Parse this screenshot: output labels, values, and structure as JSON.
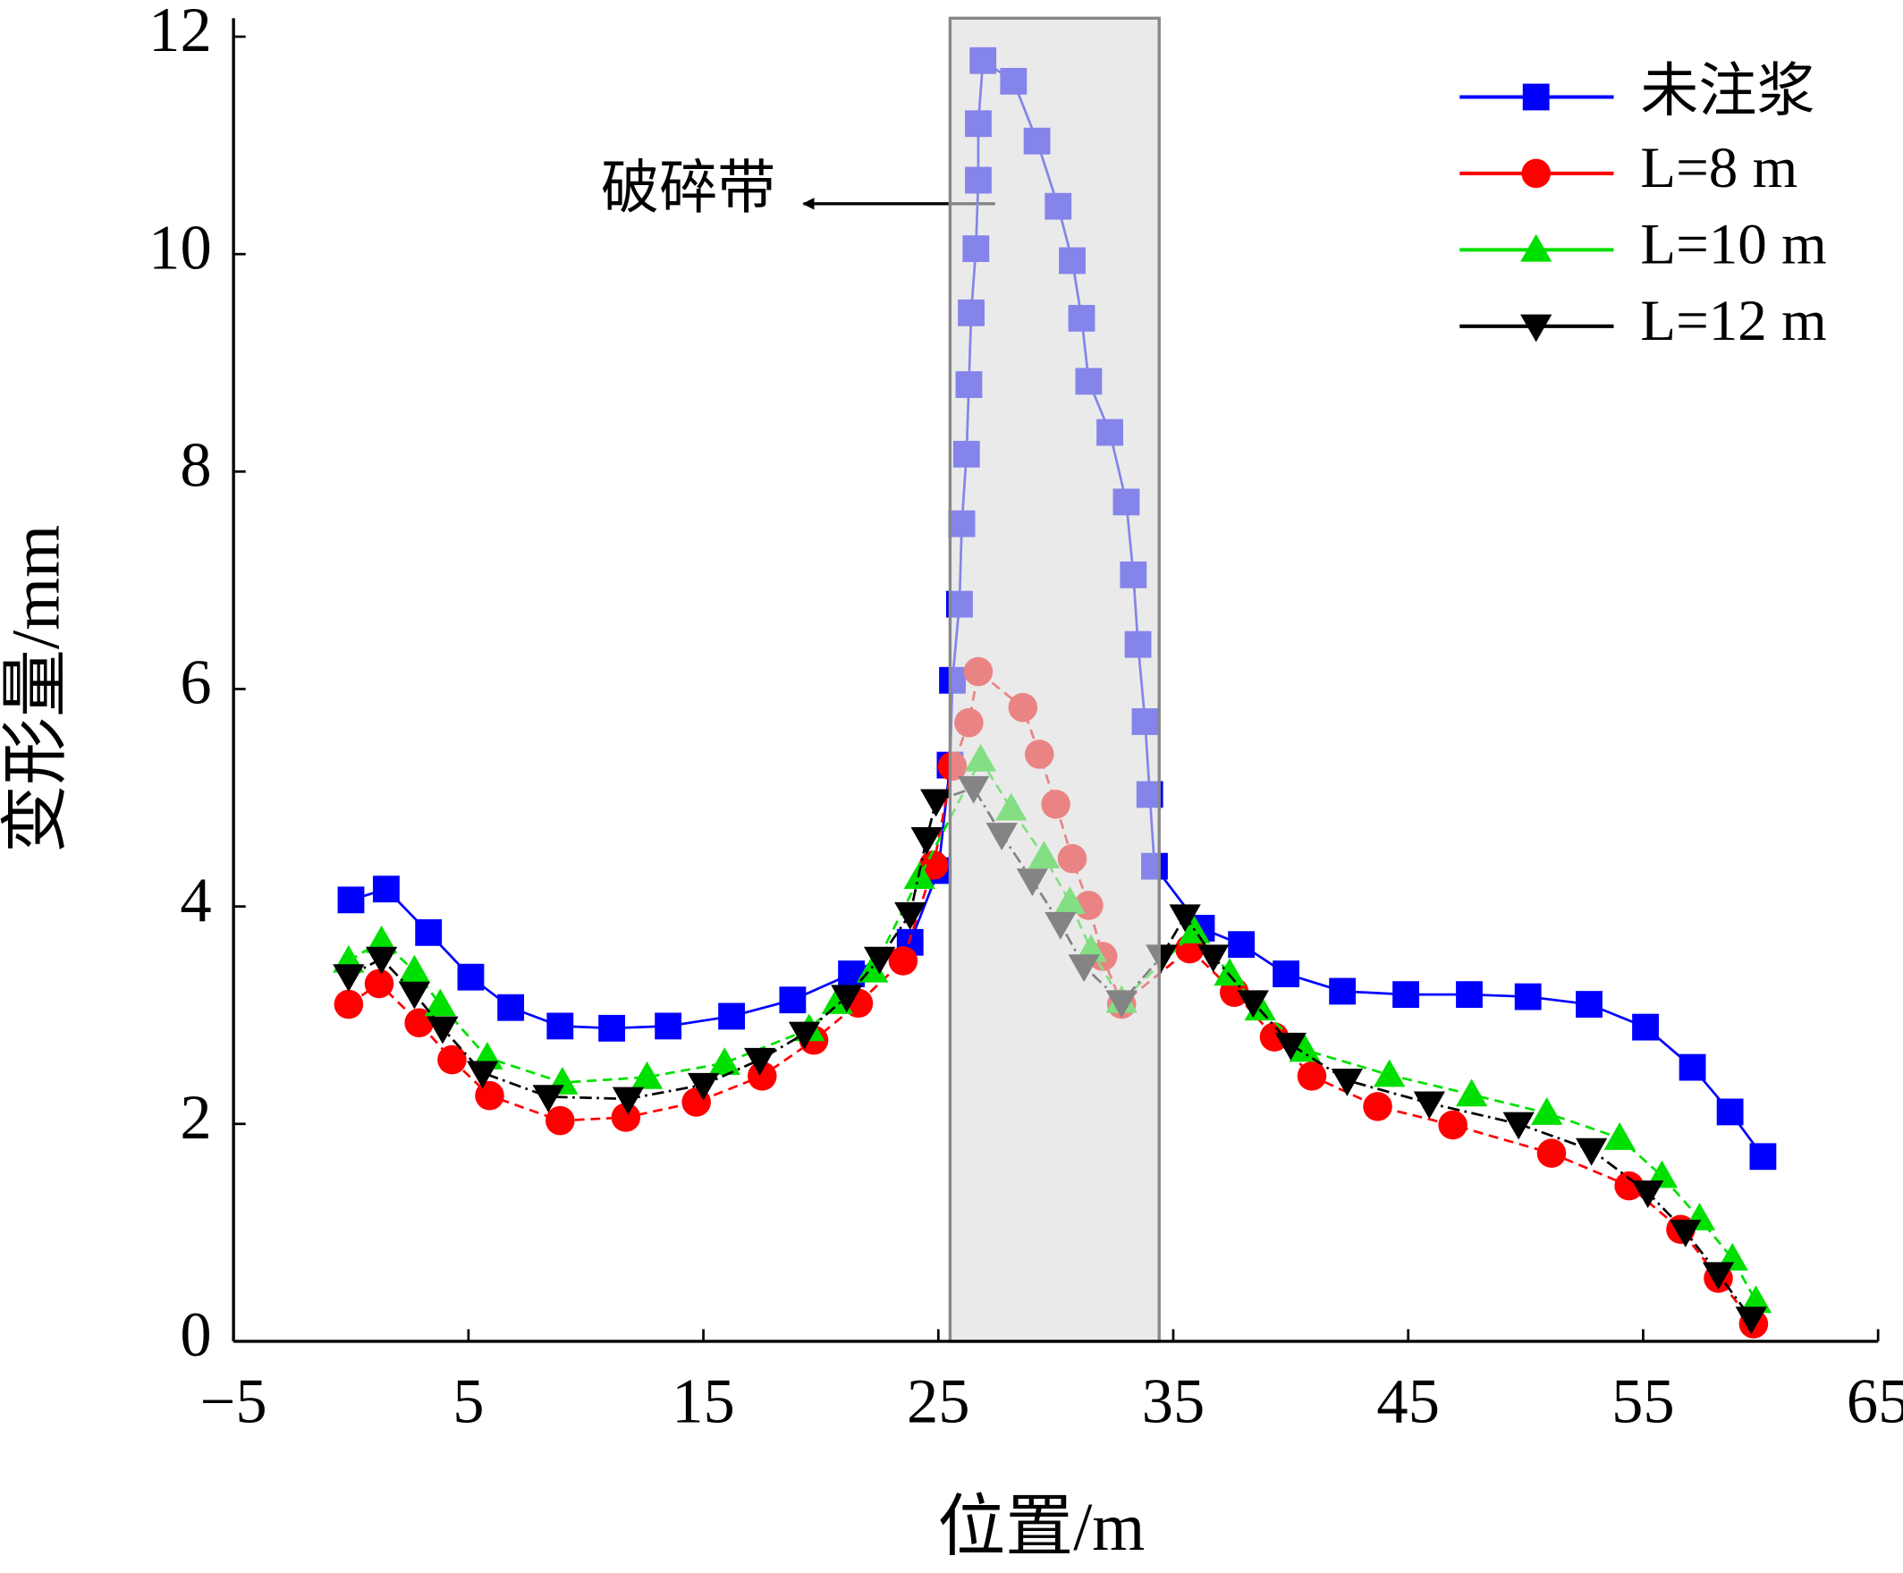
{
  "chart_data": {
    "type": "line",
    "xlabel": "位置/m",
    "ylabel": "变形量/mm",
    "xlim": [
      -5,
      65
    ],
    "ylim": [
      0,
      12.17
    ],
    "xticks": [
      {
        "value": -5,
        "label": "−5"
      },
      5,
      15,
      25,
      35,
      45,
      55,
      65
    ],
    "yticks": [
      0,
      2,
      4,
      6,
      8,
      10,
      12
    ],
    "shaded_region": {
      "x": [
        25.5,
        34.4
      ],
      "color": "#dcdcdc"
    },
    "annotation": {
      "text": "破碎带"
    },
    "legend": "upper right",
    "series": [
      {
        "name": "未注浆",
        "color": "#0000ff",
        "marker": "square",
        "linestyle": "solid",
        "x": [
          0,
          1.5,
          3.3,
          5.1,
          6.8,
          8.9,
          11.1,
          13.5,
          16.2,
          18.8,
          21.3,
          23.8,
          25.0,
          25.5,
          25.6,
          25.9,
          26.0,
          26.2,
          26.3,
          26.4,
          26.6,
          26.7,
          26.7,
          26.9,
          28.2,
          29.2,
          30.1,
          30.7,
          31.1,
          31.4,
          32.3,
          33.0,
          33.3,
          33.5,
          33.8,
          34.0,
          34.2,
          36.2,
          37.9,
          39.8,
          42.2,
          44.9,
          47.6,
          50.1,
          52.7,
          55.1,
          57.1,
          58.7,
          60.1
        ],
        "values": [
          4.06,
          4.16,
          3.76,
          3.35,
          3.07,
          2.9,
          2.88,
          2.9,
          2.99,
          3.14,
          3.38,
          3.67,
          4.33,
          5.3,
          6.08,
          6.78,
          7.52,
          8.16,
          8.8,
          9.46,
          10.05,
          10.68,
          11.2,
          11.78,
          11.59,
          11.04,
          10.44,
          9.94,
          9.41,
          8.83,
          8.36,
          7.72,
          7.05,
          6.41,
          5.7,
          5.03,
          4.37,
          3.8,
          3.65,
          3.38,
          3.22,
          3.19,
          3.19,
          3.17,
          3.1,
          2.89,
          2.52,
          2.11,
          1.7
        ]
      },
      {
        "name": "L=8 m",
        "color": "#ff0000",
        "marker": "circle",
        "linestyle": "dashed",
        "x": [
          -0.1,
          1.2,
          2.9,
          4.3,
          5.9,
          8.9,
          11.7,
          14.7,
          17.5,
          19.7,
          21.6,
          23.5,
          24.8,
          25.6,
          26.3,
          26.7,
          28.6,
          29.3,
          30.0,
          30.7,
          31.4,
          32.0,
          32.8,
          35.7,
          37.6,
          39.3,
          40.9,
          43.7,
          46.9,
          51.1,
          54.4,
          56.6,
          58.2,
          59.7
        ],
        "values": [
          3.1,
          3.29,
          2.93,
          2.59,
          2.26,
          2.03,
          2.06,
          2.2,
          2.44,
          2.77,
          3.11,
          3.5,
          4.38,
          5.29,
          5.69,
          6.16,
          5.83,
          5.4,
          4.94,
          4.44,
          4.01,
          3.54,
          3.1,
          3.61,
          3.21,
          2.8,
          2.44,
          2.16,
          1.99,
          1.73,
          1.43,
          1.03,
          0.58,
          0.16
        ]
      },
      {
        "name": "L=10 m",
        "color": "#00e000",
        "marker": "triangle-up",
        "linestyle": "dashed",
        "x": [
          -0.1,
          1.3,
          2.7,
          3.8,
          5.8,
          9.0,
          12.6,
          15.9,
          19.5,
          20.7,
          22.2,
          24.2,
          26.8,
          28.1,
          29.5,
          30.6,
          31.5,
          32.8,
          35.9,
          37.4,
          38.7,
          40.6,
          44.2,
          47.7,
          50.9,
          54.0,
          55.8,
          57.4,
          58.8,
          59.8
        ],
        "values": [
          3.5,
          3.68,
          3.41,
          3.1,
          2.61,
          2.38,
          2.43,
          2.56,
          2.87,
          3.12,
          3.41,
          4.27,
          5.35,
          4.9,
          4.46,
          4.04,
          3.6,
          3.13,
          3.77,
          3.38,
          3.06,
          2.68,
          2.45,
          2.27,
          2.1,
          1.87,
          1.52,
          1.13,
          0.76,
          0.37
        ]
      },
      {
        "name": "L=12 m",
        "color": "#000000",
        "marker": "triangle-down",
        "linestyle": "dashdot",
        "x": [
          -0.1,
          1.3,
          2.7,
          3.9,
          5.6,
          8.4,
          11.8,
          15.0,
          17.4,
          19.3,
          21.1,
          22.5,
          23.8,
          24.5,
          24.9,
          26.5,
          27.7,
          29.0,
          30.2,
          31.2,
          32.8,
          34.5,
          35.5,
          36.7,
          38.4,
          40.0,
          42.4,
          45.9,
          49.7,
          52.8,
          55.2,
          56.8,
          58.2,
          59.6
        ],
        "values": [
          3.36,
          3.52,
          3.2,
          2.88,
          2.47,
          2.25,
          2.23,
          2.36,
          2.59,
          2.83,
          3.17,
          3.52,
          3.93,
          4.62,
          4.97,
          5.09,
          4.66,
          4.24,
          3.84,
          3.45,
          3.12,
          3.54,
          3.91,
          3.54,
          3.12,
          2.73,
          2.4,
          2.19,
          2.0,
          1.76,
          1.37,
          1.01,
          0.62,
          0.21
        ]
      }
    ]
  }
}
